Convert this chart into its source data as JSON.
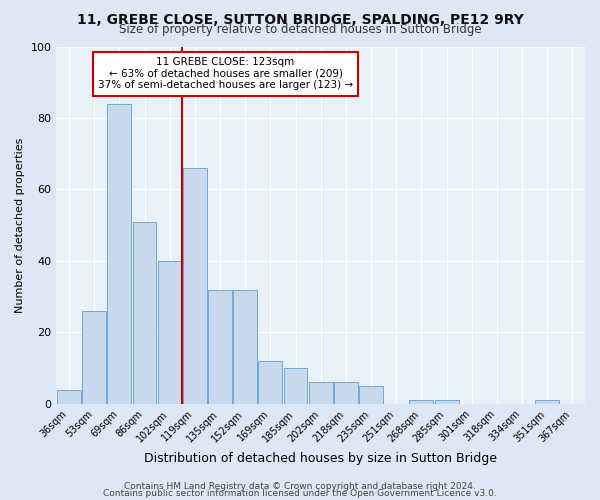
{
  "title": "11, GREBE CLOSE, SUTTON BRIDGE, SPALDING, PE12 9RY",
  "subtitle": "Size of property relative to detached houses in Sutton Bridge",
  "xlabel": "Distribution of detached houses by size in Sutton Bridge",
  "ylabel": "Number of detached properties",
  "bar_labels": [
    "36sqm",
    "53sqm",
    "69sqm",
    "86sqm",
    "102sqm",
    "119sqm",
    "135sqm",
    "152sqm",
    "169sqm",
    "185sqm",
    "202sqm",
    "218sqm",
    "235sqm",
    "251sqm",
    "268sqm",
    "285sqm",
    "301sqm",
    "318sqm",
    "334sqm",
    "351sqm",
    "367sqm"
  ],
  "bar_values": [
    4,
    26,
    84,
    51,
    40,
    66,
    32,
    32,
    12,
    10,
    6,
    6,
    5,
    0,
    1,
    1,
    0,
    0,
    0,
    1,
    0
  ],
  "bar_color": "#c9d9ed",
  "bar_edge_color": "#6fa8d6",
  "vline_color": "#cc0000",
  "annotation_text": "11 GREBE CLOSE: 123sqm\n← 63% of detached houses are smaller (209)\n37% of semi-detached houses are larger (123) →",
  "annotation_box_color": "#ffffff",
  "annotation_box_edge": "#cc0000",
  "ylim": [
    0,
    100
  ],
  "yticks": [
    0,
    20,
    40,
    60,
    80,
    100
  ],
  "footer1": "Contains HM Land Registry data © Crown copyright and database right 2024.",
  "footer2": "Contains public sector information licensed under the Open Government Licence v3.0.",
  "bg_color": "#dce8f5",
  "plot_bg_color": "#e8f0f8"
}
